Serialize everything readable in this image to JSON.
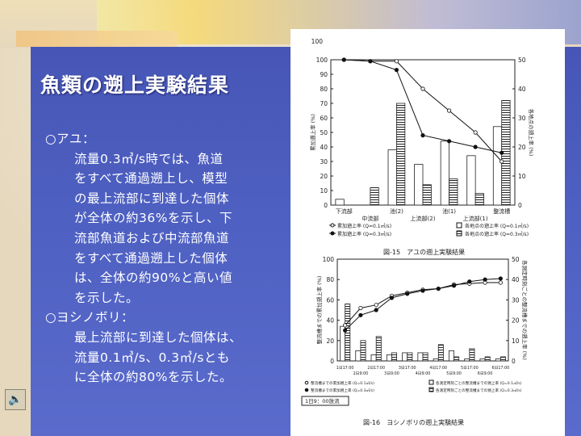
{
  "title": "魚類の遡上実験結果",
  "paragraphs": [
    {
      "kind": "heading",
      "text": "○アユ："
    },
    {
      "kind": "indent1",
      "text": "流量0.3㎥/s時では、魚道"
    },
    {
      "kind": "indent2",
      "text": "をすべて通過遡上し、模型"
    },
    {
      "kind": "indent2",
      "text": "の最上流部に到達した個体"
    },
    {
      "kind": "indent2",
      "text": "が全体の約36%を示し、下"
    },
    {
      "kind": "indent2",
      "text": "流部魚道および中流部魚道"
    },
    {
      "kind": "indent2",
      "text": "をすべて通過遡上した個体"
    },
    {
      "kind": "indent2",
      "text": "は、全体の約90%と高い値"
    },
    {
      "kind": "indent2",
      "text": "を示した。"
    },
    {
      "kind": "heading",
      "text": "○ヨシノボリ："
    },
    {
      "kind": "indent1",
      "text": "最上流部に到達した個体は、"
    },
    {
      "kind": "indent2",
      "text": "流量0.1㎥/s、0.3㎥/sとも"
    },
    {
      "kind": "indent2",
      "text": "に全体の約80%を示した。"
    }
  ],
  "speaker_icon": "speaker-icon",
  "colors": {
    "panel": "#4d5fc0",
    "text": "#ffffff"
  },
  "chart_data": [
    {
      "type": "bar",
      "caption": "図-15　アユの遡上実験結果",
      "ylabel_left": "累加遡上率 (%)",
      "ylabel_right": "各地点の遡上率 (%)",
      "ylim_left": [
        0,
        100
      ],
      "ylim_right": [
        0,
        50
      ],
      "yticks_left": [
        "0",
        "10",
        "20",
        "30",
        "40",
        "50",
        "60",
        "70",
        "80",
        "90",
        "100"
      ],
      "yticks_right": [
        "0",
        "10",
        "20",
        "30",
        "40",
        "50"
      ],
      "categories": [
        "下流部",
        "中流部",
        "池(2)",
        "上流部(2)",
        "池(1)",
        "上流部(1)",
        "整流槽"
      ],
      "category_labels_top": [
        "下流部",
        "池(2)",
        "池(1)",
        "整流槽"
      ],
      "category_labels_bottom": [
        "中流部",
        "上流部(2)",
        "上流部(1)"
      ],
      "series": [
        {
          "name": "累加遡上率 (Q=0.1㎥/s)",
          "kind": "line-open",
          "axis": "left",
          "values": [
            100,
            99,
            99,
            80,
            65,
            50,
            30
          ]
        },
        {
          "name": "累加遡上率 (Q=0.3㎥/s)",
          "kind": "line-filled",
          "axis": "left",
          "values": [
            100,
            99,
            93,
            48,
            44,
            40,
            36
          ]
        },
        {
          "name": "各地点の遡上率 (Q=0.1㎥/s)",
          "kind": "bar-open",
          "axis": "right",
          "values": [
            2,
            0,
            19,
            14,
            22,
            17,
            27
          ]
        },
        {
          "name": "各地点の遡上率 (Q=0.3㎥/s)",
          "kind": "bar-hatched",
          "axis": "right",
          "values": [
            0,
            6,
            35,
            7,
            9,
            4,
            36
          ]
        }
      ],
      "legend": [
        "累加遡上率 (Q=0.1㎥/s)",
        "各地点の遡上率 (Q=0.1㎥/s)",
        "累加遡上率 (Q=0.3㎥/s)",
        "各地点の遡上率 (Q=0.3㎥/s)"
      ],
      "legend_placement": "bottom"
    },
    {
      "type": "bar",
      "caption": "図-16　ヨシノボリの遡上実験結果",
      "ylabel_left": "整流槽までの累加遡上率 (%)",
      "ylabel_right": "各測定時刻ごとの整流槽までの遡上率 (%)",
      "ylim_left": [
        0,
        100
      ],
      "ylim_right": [
        0,
        50
      ],
      "yticks_left": [
        "0",
        "20",
        "40",
        "60",
        "80",
        "100"
      ],
      "yticks_right": [
        "0",
        "10",
        "20",
        "30",
        "40",
        "50"
      ],
      "categories": [
        "1日17:00",
        "2日9:00",
        "2日17:00",
        "3日9:00",
        "3日17:00",
        "4日9:00",
        "4日17:00",
        "5日9:00",
        "5日17:00",
        "6日9:00",
        "6日17:00"
      ],
      "note": "1日9：00放流",
      "series": [
        {
          "name": "整流槽までの累加遡上率 (Q=0.1㎥/s)",
          "kind": "line-open",
          "axis": "left",
          "values": [
            35,
            52,
            55,
            64,
            67,
            70,
            71,
            75,
            76,
            77,
            77
          ]
        },
        {
          "name": "整流槽までの累加遡上率 (Q=0.3㎥/s)",
          "kind": "line-filled",
          "axis": "left",
          "values": [
            30,
            45,
            50,
            62,
            66,
            69,
            71,
            74,
            78,
            80,
            81
          ]
        },
        {
          "name": "各測定時刻ごとの整流槽までの遡上率 (Q=0.1㎥/s)",
          "kind": "bar-open",
          "axis": "right",
          "values": [
            17,
            5,
            3,
            3,
            4,
            4,
            1,
            5,
            1,
            1,
            1
          ]
        },
        {
          "name": "各測定時刻ごとの整流槽までの遡上率 (Q=0.3㎥/s)",
          "kind": "bar-hatched",
          "axis": "right",
          "values": [
            28,
            10,
            12,
            4,
            4,
            4,
            8,
            2,
            6,
            2,
            2
          ]
        }
      ],
      "legend": [
        "整流槽までの累加遡上率 (Q=0.1㎥/s)",
        "各測定時刻ごとの整流槽までの遡上率 (Q=0.1㎥/s)",
        "整流槽までの累加遡上率 (Q=0.3㎥/s)",
        "各測定時刻ごとの整流槽までの遡上率 (Q=0.3㎥/s)"
      ],
      "legend_placement": "bottom"
    }
  ]
}
